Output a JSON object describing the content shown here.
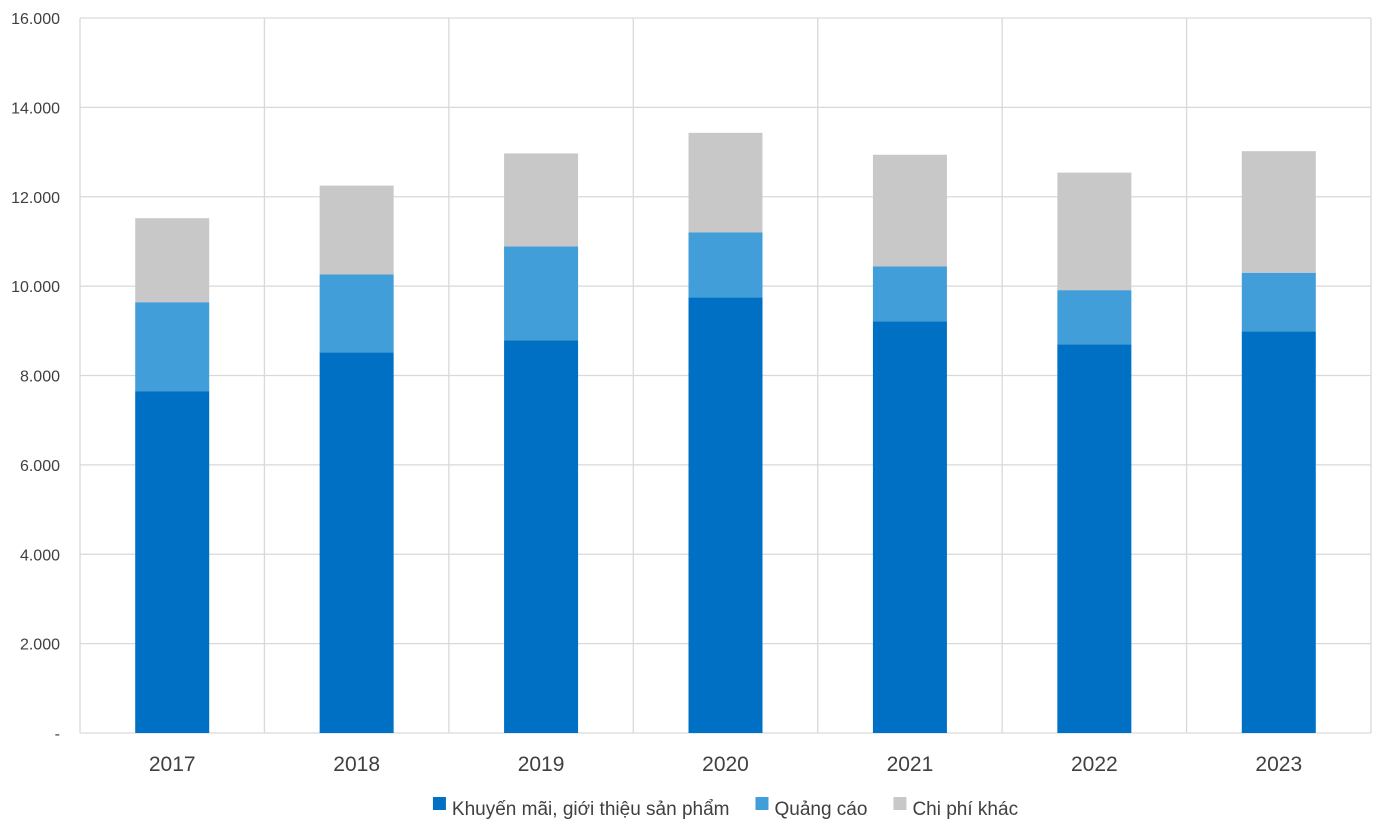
{
  "chart_data": {
    "type": "bar",
    "stacked": true,
    "categories": [
      "2017",
      "2018",
      "2019",
      "2020",
      "2021",
      "2022",
      "2023"
    ],
    "series": [
      {
        "name": "Khuyến mãi, giới thiệu sản phẩm",
        "values": [
          7650,
          8520,
          8790,
          9750,
          9210,
          8700,
          8990
        ],
        "color": "#0070c4"
      },
      {
        "name": "Quảng cáo",
        "values": [
          1990,
          1740,
          2100,
          1450,
          1230,
          1210,
          1310
        ],
        "color": "#419ed9"
      },
      {
        "name": "Chi phí khác",
        "values": [
          1880,
          1990,
          2080,
          2230,
          2500,
          2630,
          2720
        ],
        "color": "#c8c8c8"
      }
    ],
    "ylim": [
      0,
      16000
    ],
    "yticks": [
      0,
      2000,
      4000,
      6000,
      8000,
      10000,
      12000,
      14000,
      16000
    ],
    "ytick_labels": [
      "-",
      "2.000",
      "4.000",
      "6.000",
      "8.000",
      "10.000",
      "12.000",
      "14.000",
      "16.000"
    ],
    "title": "",
    "xlabel": "",
    "ylabel": "",
    "grid": "both",
    "legend_position": "bottom",
    "colors": {
      "grid": "#d9d9d9",
      "text": "#404040"
    }
  }
}
